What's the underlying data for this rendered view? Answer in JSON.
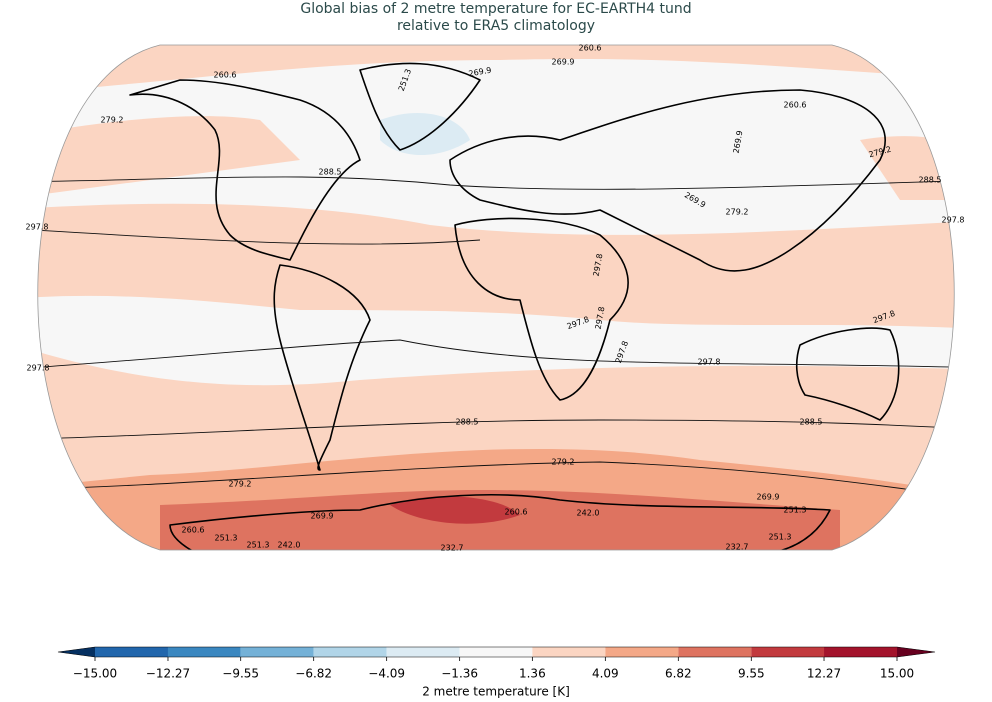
{
  "title_lines": [
    "Global bias of 2 metre temperature for EC-EARTH4 tund",
    "relative to ERA5 climatology"
  ],
  "contour_labels": [
    "260.6",
    "251.3",
    "269.9",
    "269.9",
    "260.6",
    "260.6",
    "279.2",
    "269.9",
    "279.2",
    "288.5",
    "288.5",
    "297.8",
    "297.8",
    "279.2",
    "269.9",
    "297.8",
    "297.8",
    "297.8",
    "297.8",
    "297.8",
    "297.8",
    "297.8",
    "288.5",
    "288.5",
    "279.2",
    "279.2",
    "269.9",
    "269.9",
    "260.6",
    "242.0",
    "251.3",
    "260.6",
    "251.3",
    "251.3",
    "242.0",
    "232.7",
    "251.3",
    "232.7"
  ],
  "colorbar": {
    "label": "2 metre temperature [K]",
    "lim": [
      -15,
      15
    ],
    "ticks": [
      {
        "value": -15,
        "label": "−15.00"
      },
      {
        "value": -12.27,
        "label": "−12.27"
      },
      {
        "value": -9.55,
        "label": "−9.55"
      },
      {
        "value": -6.82,
        "label": "−6.82"
      },
      {
        "value": -4.09,
        "label": "−4.09"
      },
      {
        "value": -1.36,
        "label": "−1.36"
      },
      {
        "value": 1.36,
        "label": "1.36"
      },
      {
        "value": 4.09,
        "label": "4.09"
      },
      {
        "value": 6.82,
        "label": "6.82"
      },
      {
        "value": 9.55,
        "label": "9.55"
      },
      {
        "value": 12.27,
        "label": "12.27"
      },
      {
        "value": 15,
        "label": "15.00"
      }
    ],
    "colors": [
      "#2166ac",
      "#3a87c0",
      "#74b1d7",
      "#b1d5e8",
      "#dcebf3",
      "#f7f7f7",
      "#fbd5c2",
      "#f4a887",
      "#de7360",
      "#c23a3e",
      "#a3132b"
    ],
    "under_color": "#053061",
    "over_color": "#67001f"
  }
}
